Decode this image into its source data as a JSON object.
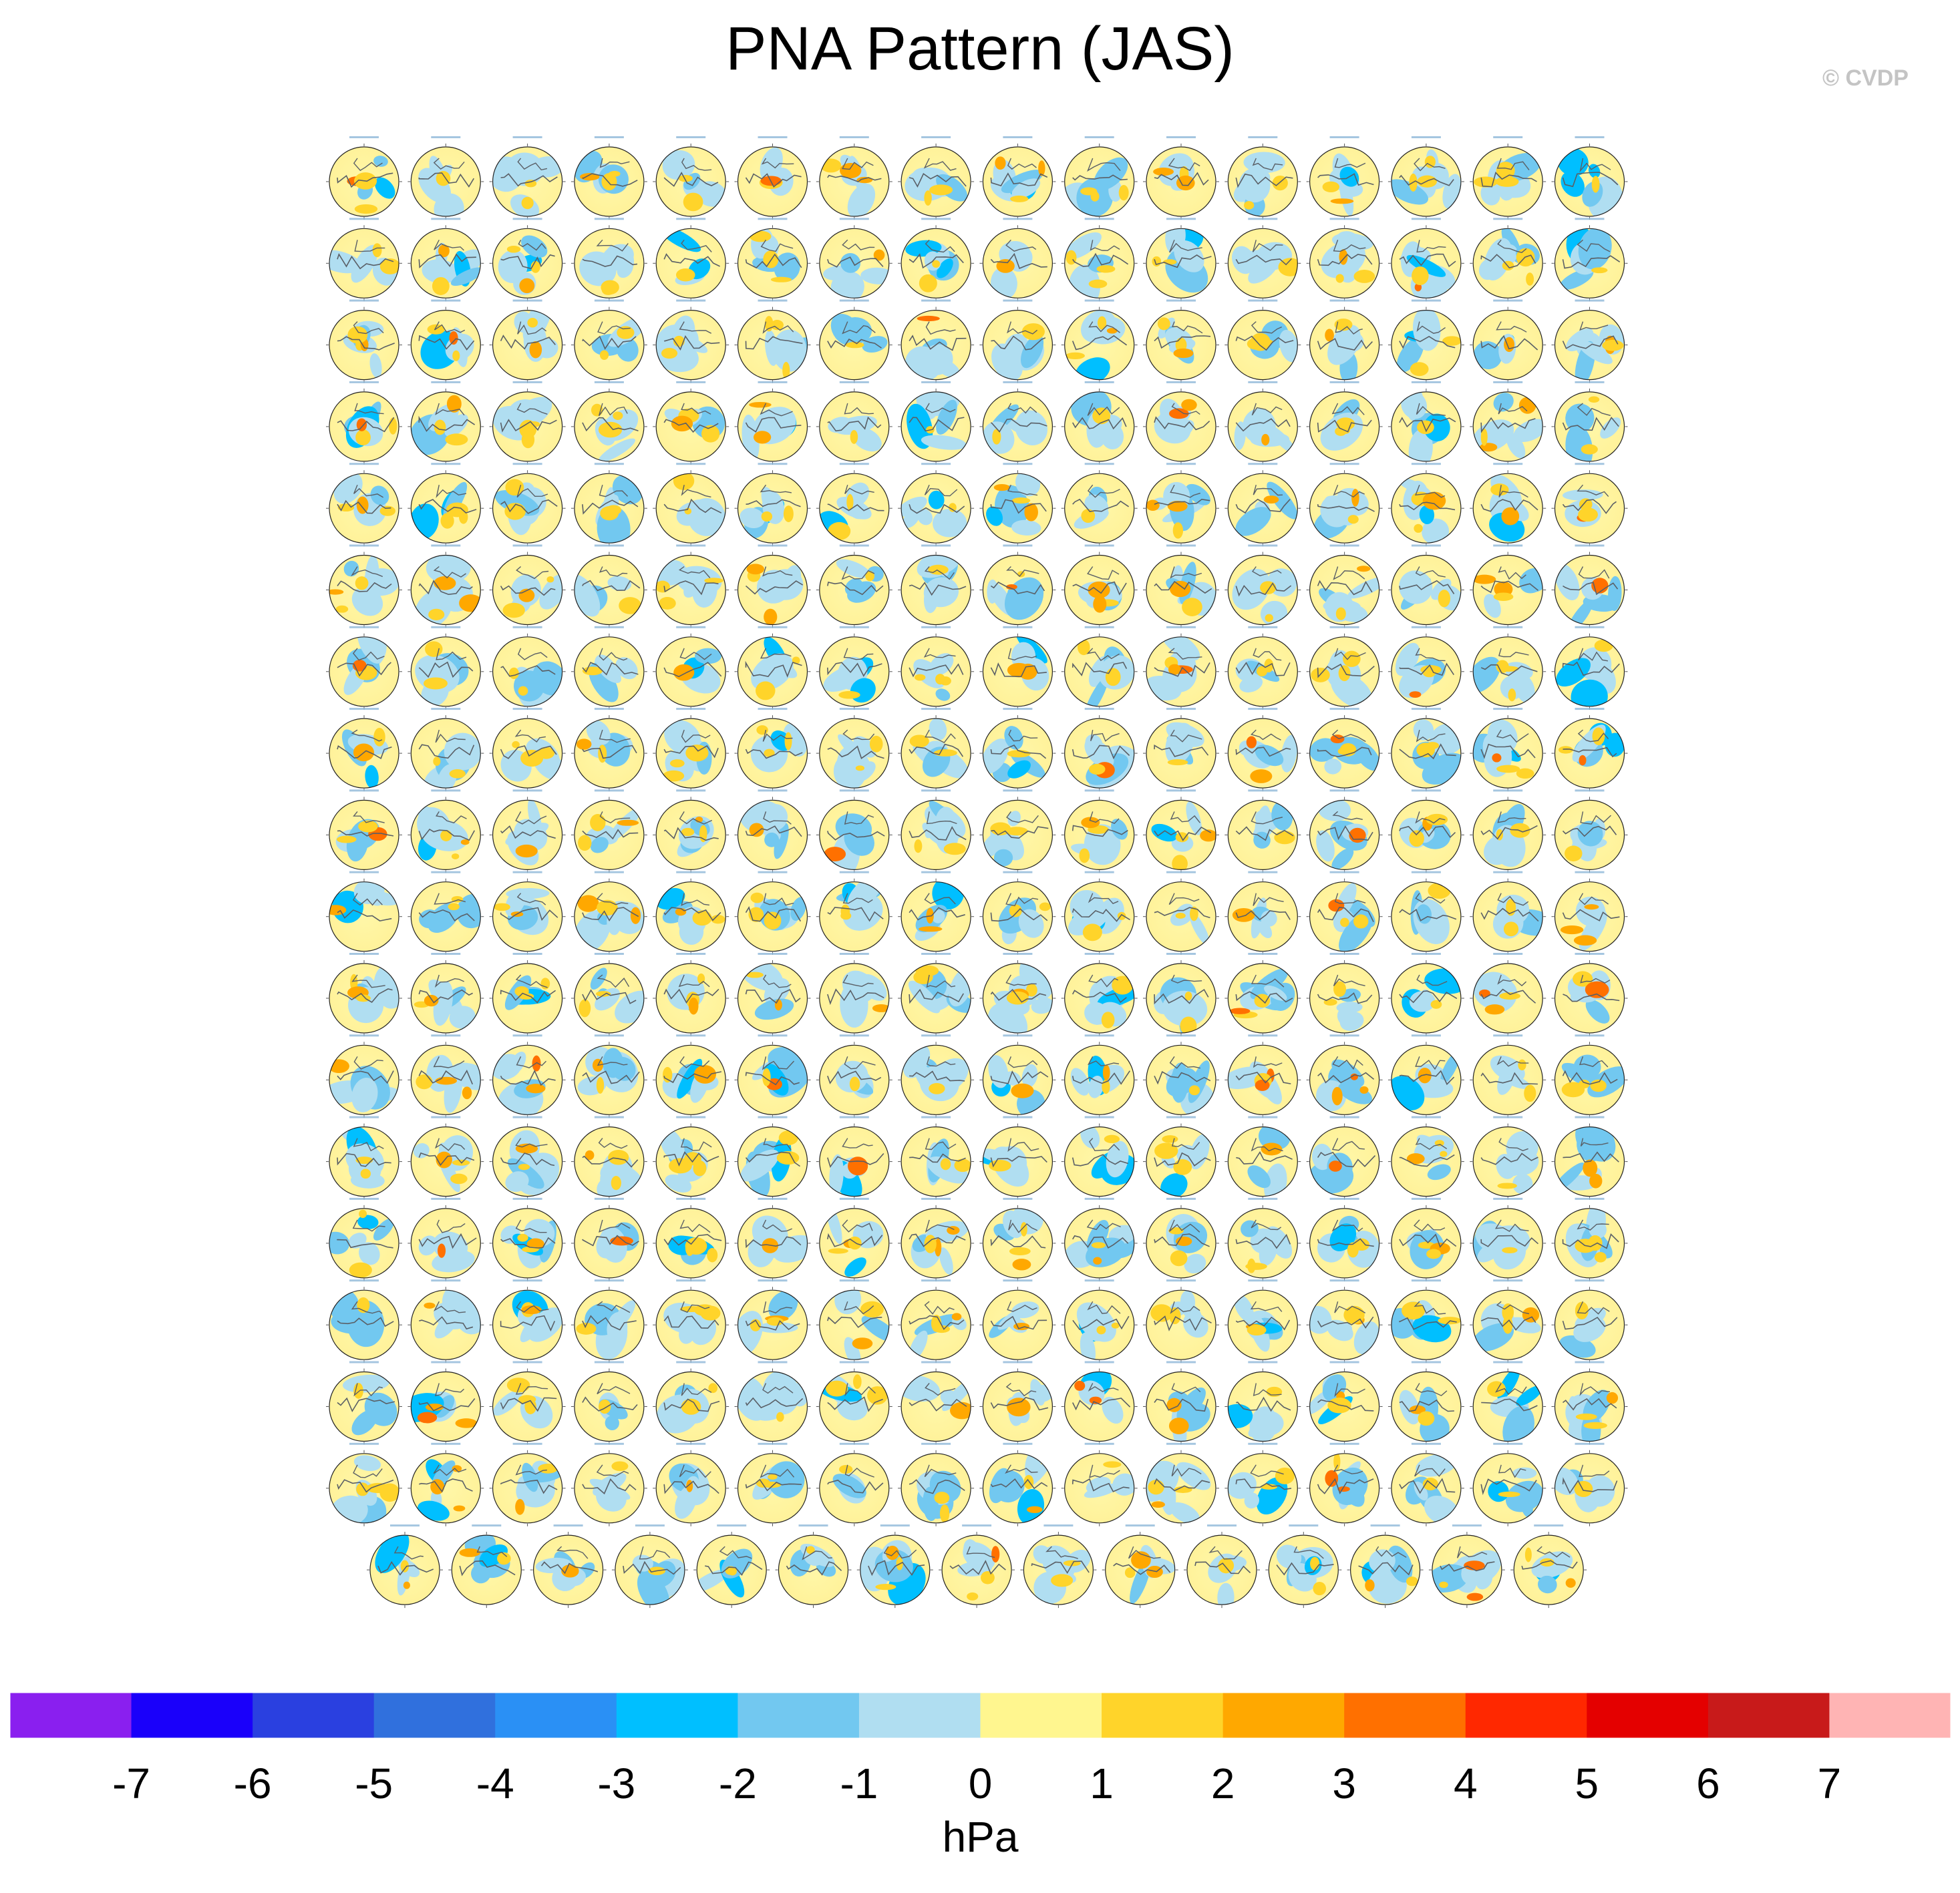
{
  "title": "PNA Pattern (JAS)",
  "copyright": "© CVDP",
  "chart_data": {
    "type": "heatmap",
    "description_text": "",
    "panel_grid": {
      "rows": 18,
      "columns_full": 16,
      "columns_last_row": 15,
      "total_panels": 287
    },
    "colorbar": {
      "unit_label": "hPa",
      "tick_labels": [
        "-7",
        "-6",
        "-5",
        "-4",
        "-3",
        "-2",
        "-1",
        "0",
        "1",
        "2",
        "3",
        "4",
        "5",
        "6",
        "7"
      ],
      "levels": [
        -7,
        -6,
        -5,
        -4,
        -3,
        -2,
        -1,
        0,
        1,
        2,
        3,
        4,
        5,
        6,
        7
      ],
      "colors": [
        "#8a1fef",
        "#1a00fa",
        "#2a40e0",
        "#3070dd",
        "#2a90f5",
        "#00bfff",
        "#72c8f0",
        "#b0def1",
        "#fff68f",
        "#ffd42a",
        "#ffa800",
        "#ff7000",
        "#ff2800",
        "#e40000",
        "#c81a1a",
        "#ffb4b4"
      ]
    }
  }
}
